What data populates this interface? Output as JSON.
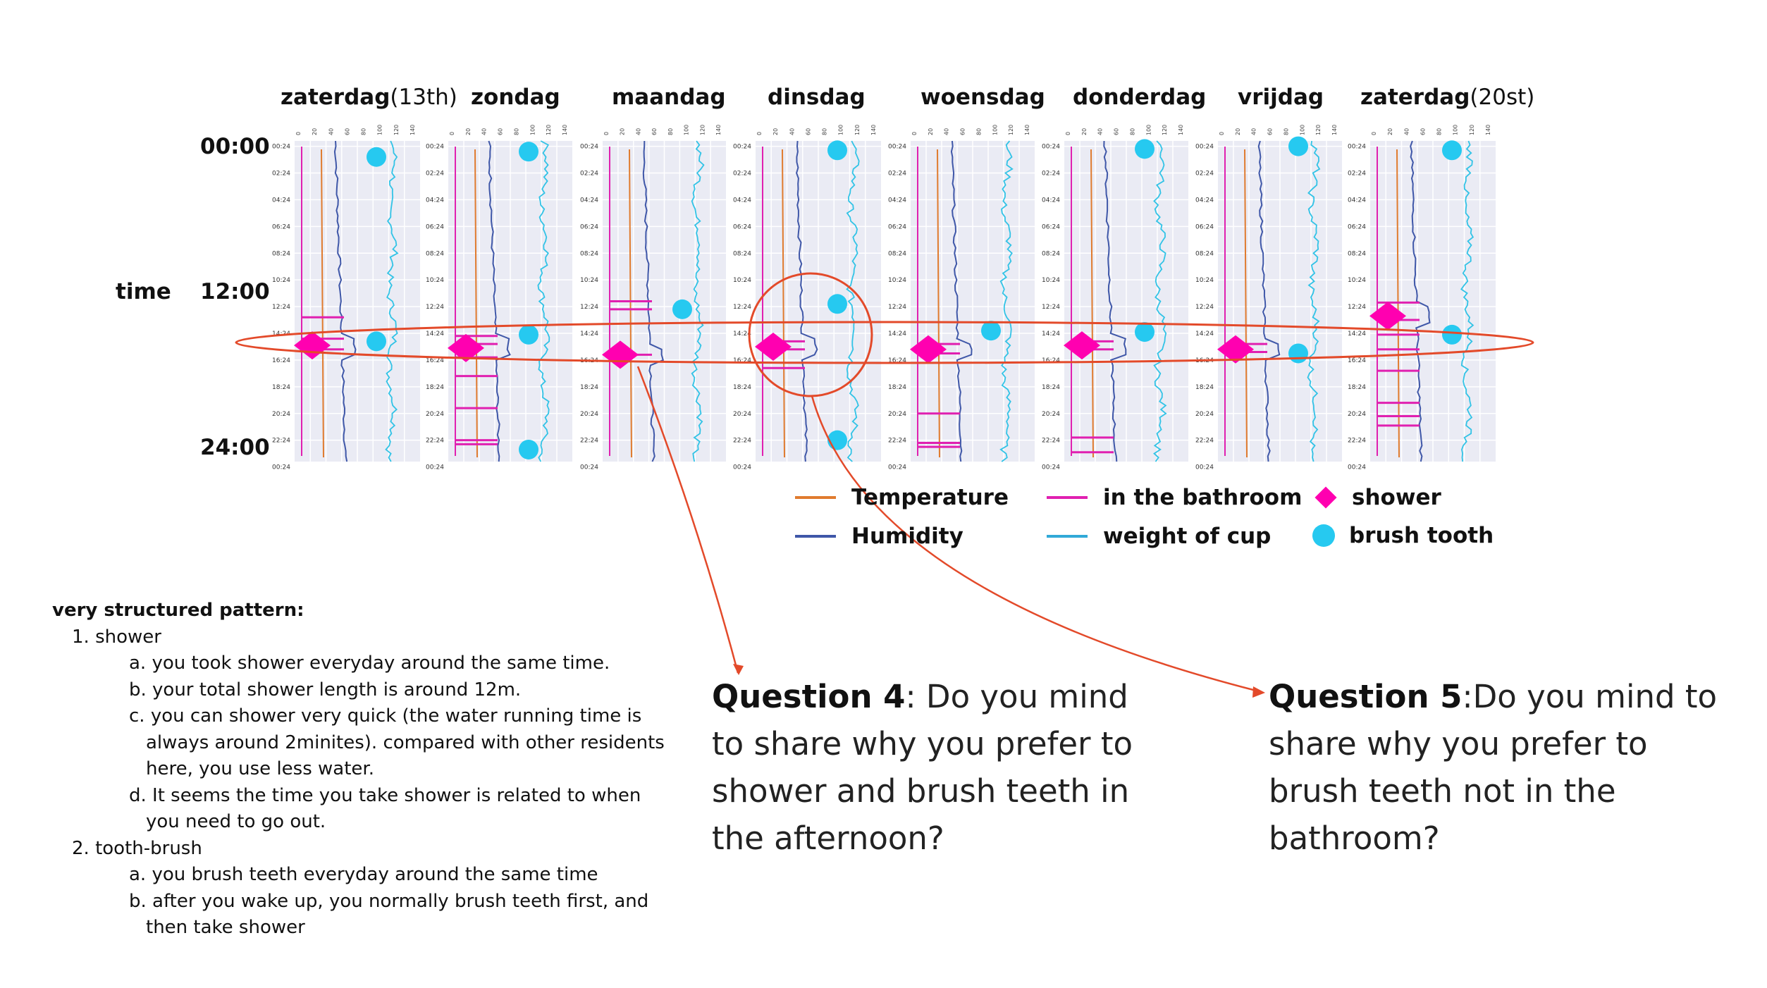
{
  "days": [
    {
      "name": "zaterdag",
      "suffix": "(13th)"
    },
    {
      "name": "zondag",
      "suffix": ""
    },
    {
      "name": "maandag",
      "suffix": ""
    },
    {
      "name": "dinsdag",
      "suffix": ""
    },
    {
      "name": "woensdag",
      "suffix": ""
    },
    {
      "name": "donderdag",
      "suffix": ""
    },
    {
      "name": "vrijdag",
      "suffix": ""
    },
    {
      "name": "zaterdag",
      "suffix": "(20st)"
    }
  ],
  "time_axis": {
    "label": "time",
    "start": "00:00",
    "mid": "12:00",
    "end": "24:00"
  },
  "legend": {
    "temperature": "Temperature",
    "humidity": "Humidity",
    "bathroom": "in the bathroom",
    "cup": "weight of cup",
    "shower": "shower",
    "brush": "brush tooth"
  },
  "colors": {
    "temperature": "#e07b2e",
    "humidity": "#3f57a8",
    "bathroom": "#e020b0",
    "cup": "#31c3e6",
    "shower": "#ff00b0",
    "brush": "#26c9f0",
    "annotation": "#e34a2a",
    "panel_bg": "#eaebf4"
  },
  "chart_data": {
    "type": "line",
    "hour_ticks": [
      "00:24",
      "02:24",
      "04:24",
      "06:24",
      "08:24",
      "10:24",
      "12:24",
      "14:24",
      "16:24",
      "18:24",
      "20:24",
      "22:24",
      "00:24"
    ],
    "x_ticks": [
      "0",
      "20",
      "40",
      "60",
      "80",
      "100",
      "120",
      "140"
    ],
    "series": [
      {
        "name": "Temperature"
      },
      {
        "name": "Humidity"
      },
      {
        "name": "in the bathroom"
      },
      {
        "name": "weight of cup"
      }
    ],
    "events": [
      {
        "shower_hour": 15.3,
        "teeth_hours": [
          1.2,
          15.0
        ],
        "bathroom_hours": [
          13.2,
          14.8,
          15.6
        ]
      },
      {
        "shower_hour": 15.5,
        "teeth_hours": [
          0.8,
          14.5,
          23.1
        ],
        "bathroom_hours": [
          14.6,
          15.2,
          16.2,
          17.6,
          20.0,
          22.4,
          22.7
        ]
      },
      {
        "shower_hour": 16.0,
        "teeth_hours": [
          12.6
        ],
        "bathroom_hours": [
          12.0,
          12.6,
          16.0
        ]
      },
      {
        "shower_hour": 15.4,
        "teeth_hours": [
          0.7,
          12.2,
          22.4
        ],
        "bathroom_hours": [
          15.0,
          15.6,
          17.0
        ]
      },
      {
        "shower_hour": 15.6,
        "teeth_hours": [
          14.2
        ],
        "bathroom_hours": [
          15.2,
          15.9,
          20.4,
          22.6,
          22.9
        ]
      },
      {
        "shower_hour": 15.3,
        "teeth_hours": [
          0.6,
          14.3
        ],
        "bathroom_hours": [
          15.0,
          15.6,
          22.2,
          23.3
        ]
      },
      {
        "shower_hour": 15.6,
        "teeth_hours": [
          0.4,
          15.9
        ],
        "bathroom_hours": [
          15.2,
          15.8
        ]
      },
      {
        "shower_hour": 13.1,
        "teeth_hours": [
          0.7,
          14.5
        ],
        "bathroom_hours": [
          12.1,
          13.4,
          14.5,
          15.6,
          17.2,
          19.6,
          20.6,
          21.3
        ]
      }
    ]
  },
  "findings": {
    "heading": "very structured pattern:",
    "item1": "1. shower",
    "item1a": "a. you took shower everyday around the same time.",
    "item1b": "b. your total shower length is around 12m.",
    "item1c_1": "c. you can shower very quick (the water running time is",
    "item1c_2": "always around 2minites). compared with other residents",
    "item1c_3": "here, you use less water.",
    "item1d_1": "d. It seems the time you take shower is related to when",
    "item1d_2": "you need to go out.",
    "item2": "2. tooth-brush",
    "item2a": "a. you brush teeth everyday around the same time",
    "item2b_1": "b. after you wake up, you normally brush teeth first, and",
    "item2b_2": "then take shower"
  },
  "questions": {
    "q4_label": "Question 4",
    "q4_text": ": Do you mind to share why you prefer to shower and brush teeth in the afternoon?",
    "q5_label": "Question 5",
    "q5_text": ":Do you mind to share why you prefer to brush teeth not in the bathroom?"
  }
}
